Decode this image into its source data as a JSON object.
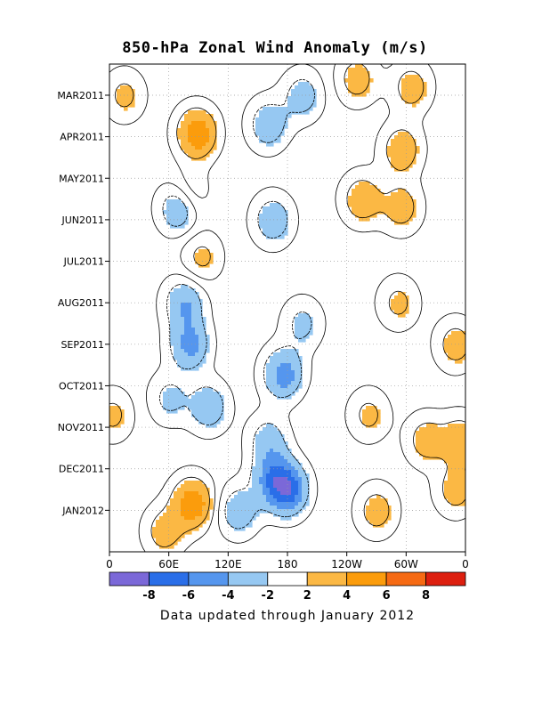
{
  "chart_data": {
    "type": "heatmap",
    "title": "850-hPa Zonal Wind Anomaly (m/s)",
    "footer": "Data updated through January 2012",
    "x_ticks": [
      "0",
      "60E",
      "120E",
      "180",
      "120W",
      "60W",
      "0"
    ],
    "x_tick_lon": [
      0,
      60,
      120,
      180,
      240,
      300,
      360
    ],
    "x_range": [
      0,
      360
    ],
    "y_ticks": [
      "MAR2011",
      "APR2011",
      "MAY2011",
      "JUN2011",
      "JUL2011",
      "AUG2011",
      "SEP2011",
      "OCT2011",
      "NOV2011",
      "DEC2011",
      "JAN2012"
    ],
    "y_tick_month": [
      1,
      2,
      3,
      4,
      5,
      6,
      7,
      8,
      9,
      10,
      11
    ],
    "y_range": [
      0.25,
      12.0
    ],
    "y_direction": "time increases downward",
    "grid": true,
    "colorbar": {
      "tick_labels": [
        "-8",
        "-6",
        "-4",
        "-2",
        "2",
        "4",
        "6",
        "8"
      ],
      "levels": [
        -8,
        -6,
        -4,
        -2,
        2,
        4,
        6,
        8
      ],
      "colors": [
        "#7b68d8",
        "#2a6ee8",
        "#5596ee",
        "#96c8f2",
        "#ffffff",
        "#fbb844",
        "#fb9c0c",
        "#f66a13",
        "#dd1f0f"
      ]
    },
    "anomaly_features": [
      {
        "lon": 88,
        "month": 1.9,
        "value": 5.5,
        "sign": "positive"
      },
      {
        "lon": 83,
        "month": 10.8,
        "value": 5.5,
        "sign": "positive"
      },
      {
        "lon": 195,
        "month": 1.0,
        "value": -3.0,
        "sign": "negative"
      },
      {
        "lon": 160,
        "month": 1.7,
        "value": -3.5,
        "sign": "negative"
      },
      {
        "lon": 70,
        "month": 3.7,
        "value": -4.5,
        "sign": "negative"
      },
      {
        "lon": 165,
        "month": 4.0,
        "value": -3.5,
        "sign": "negative"
      },
      {
        "lon": 75,
        "month": 6.0,
        "value": -4.0,
        "sign": "negative"
      },
      {
        "lon": 195,
        "month": 6.5,
        "value": -2.5,
        "sign": "negative"
      },
      {
        "lon": 80,
        "month": 7.0,
        "value": -4.5,
        "sign": "negative"
      },
      {
        "lon": 175,
        "month": 7.7,
        "value": -5.0,
        "sign": "negative"
      },
      {
        "lon": 100,
        "month": 8.5,
        "value": -3.5,
        "sign": "negative"
      },
      {
        "lon": 160,
        "month": 9.3,
        "value": -3.0,
        "sign": "negative"
      },
      {
        "lon": 165,
        "month": 10.2,
        "value": -5.0,
        "sign": "negative"
      },
      {
        "lon": 180,
        "month": 10.5,
        "value": -6.0,
        "sign": "negative"
      },
      {
        "lon": 130,
        "month": 11.0,
        "value": -3.5,
        "sign": "negative"
      },
      {
        "lon": 250,
        "month": 0.6,
        "value": 3.0,
        "sign": "positive"
      },
      {
        "lon": 305,
        "month": 0.8,
        "value": 3.0,
        "sign": "positive"
      },
      {
        "lon": 295,
        "month": 2.3,
        "value": 3.5,
        "sign": "positive"
      },
      {
        "lon": 255,
        "month": 3.5,
        "value": 3.5,
        "sign": "positive"
      },
      {
        "lon": 295,
        "month": 3.7,
        "value": 3.0,
        "sign": "positive"
      },
      {
        "lon": 292,
        "month": 6.0,
        "value": 2.5,
        "sign": "positive"
      },
      {
        "lon": 262,
        "month": 8.7,
        "value": 2.5,
        "sign": "positive"
      },
      {
        "lon": 350,
        "month": 7.0,
        "value": 3.0,
        "sign": "positive"
      },
      {
        "lon": 355,
        "month": 9.3,
        "value": 3.5,
        "sign": "positive"
      },
      {
        "lon": 320,
        "month": 9.3,
        "value": 3.0,
        "sign": "positive"
      },
      {
        "lon": 270,
        "month": 11.0,
        "value": 3.0,
        "sign": "positive"
      },
      {
        "lon": 350,
        "month": 10.5,
        "value": 3.0,
        "sign": "positive"
      },
      {
        "lon": 15,
        "month": 1.0,
        "value": 2.5,
        "sign": "positive"
      },
      {
        "lon": 55,
        "month": 11.5,
        "value": 3.0,
        "sign": "positive"
      },
      {
        "lon": 60,
        "month": 8.3,
        "value": -2.5,
        "sign": "negative"
      },
      {
        "lon": 93,
        "month": 4.9,
        "value": 2.5,
        "sign": "positive"
      },
      {
        "lon": 3,
        "month": 8.7,
        "value": 2.5,
        "sign": "positive"
      },
      {
        "lon": 80,
        "month": 3.4,
        "value": 2.5,
        "sign": "positive"
      }
    ]
  }
}
